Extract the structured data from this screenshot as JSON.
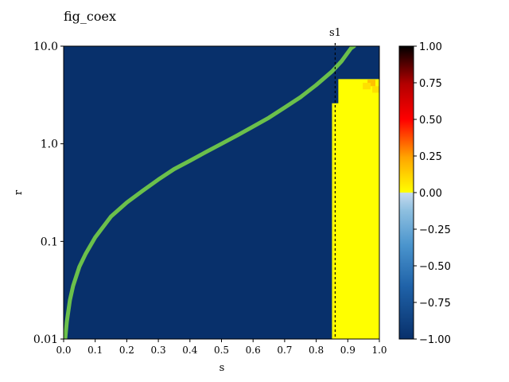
{
  "chart_data": {
    "type": "heatmap",
    "title": "fig_coex",
    "xlabel": "s",
    "ylabel": "r",
    "xlim": [
      0.0,
      1.0
    ],
    "ylim": [
      0.01,
      10.0
    ],
    "y_scale": "log",
    "x_ticks": [
      "0.0",
      "0.1",
      "0.2",
      "0.3",
      "0.4",
      "0.5",
      "0.6",
      "0.7",
      "0.8",
      "0.9",
      "1.0"
    ],
    "y_ticks": [
      "0.01",
      "0.1",
      "1.0",
      "10.0"
    ],
    "grid": false,
    "background_value": -1.0,
    "region": {
      "value": 0.0,
      "s_min": 0.85,
      "s_max": 1.0,
      "r_min": 0.01,
      "r_max": 4.6,
      "notch_s_max": 0.87,
      "notch_r_min": 2.6
    },
    "hot_cells": [
      {
        "s": 0.975,
        "r": 4.2,
        "value": 0.1
      },
      {
        "s": 0.99,
        "r": 3.6,
        "value": 0.05
      },
      {
        "s": 0.96,
        "r": 3.9,
        "value": 0.05
      }
    ],
    "curve": {
      "color": "#6bc04b",
      "points": [
        [
          0.005,
          0.01
        ],
        [
          0.01,
          0.015
        ],
        [
          0.02,
          0.025
        ],
        [
          0.03,
          0.035
        ],
        [
          0.05,
          0.055
        ],
        [
          0.07,
          0.075
        ],
        [
          0.1,
          0.11
        ],
        [
          0.15,
          0.18
        ],
        [
          0.2,
          0.25
        ],
        [
          0.25,
          0.33
        ],
        [
          0.3,
          0.43
        ],
        [
          0.35,
          0.55
        ],
        [
          0.4,
          0.67
        ],
        [
          0.45,
          0.82
        ],
        [
          0.5,
          1.0
        ],
        [
          0.55,
          1.22
        ],
        [
          0.6,
          1.5
        ],
        [
          0.65,
          1.85
        ],
        [
          0.7,
          2.35
        ],
        [
          0.75,
          3.0
        ],
        [
          0.8,
          4.0
        ],
        [
          0.85,
          5.5
        ],
        [
          0.88,
          7.0
        ],
        [
          0.91,
          9.5
        ],
        [
          0.92,
          10.0
        ]
      ]
    },
    "vline": {
      "label": "s1",
      "s": 0.86
    },
    "colorbar": {
      "min": -1.0,
      "max": 1.0,
      "ticks": [
        "1.00",
        "0.75",
        "0.50",
        "0.25",
        "0.00",
        "−0.25",
        "−0.50",
        "−0.75",
        "−1.00"
      ],
      "tick_values": [
        1.0,
        0.75,
        0.5,
        0.25,
        0.0,
        -0.25,
        -0.5,
        -0.75,
        -1.0
      ],
      "colors_negative": [
        "#08306b",
        "#2171b5",
        "#6baed6",
        "#c6dbef"
      ],
      "colors_positive": [
        "#ffff00",
        "#ffa500",
        "#ff0000",
        "#b00000",
        "#000000"
      ]
    }
  }
}
